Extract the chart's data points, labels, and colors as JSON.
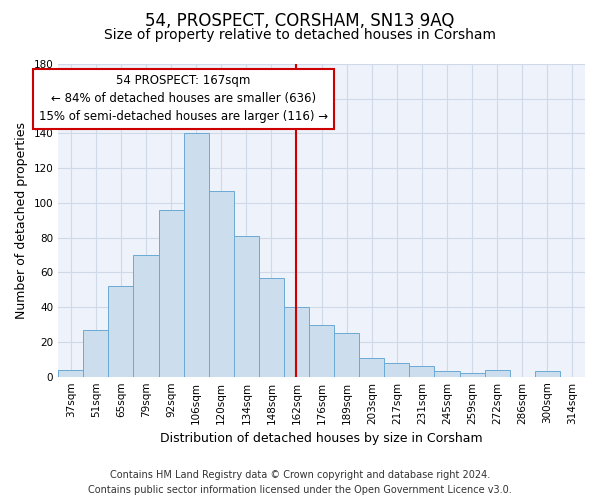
{
  "title": "54, PROSPECT, CORSHAM, SN13 9AQ",
  "subtitle": "Size of property relative to detached houses in Corsham",
  "xlabel": "Distribution of detached houses by size in Corsham",
  "ylabel": "Number of detached properties",
  "bar_labels": [
    "37sqm",
    "51sqm",
    "65sqm",
    "79sqm",
    "92sqm",
    "106sqm",
    "120sqm",
    "134sqm",
    "148sqm",
    "162sqm",
    "176sqm",
    "189sqm",
    "203sqm",
    "217sqm",
    "231sqm",
    "245sqm",
    "259sqm",
    "272sqm",
    "286sqm",
    "300sqm",
    "314sqm"
  ],
  "bar_values": [
    4,
    27,
    52,
    70,
    96,
    140,
    107,
    81,
    57,
    40,
    30,
    25,
    11,
    8,
    6,
    3,
    2,
    4,
    0,
    3,
    0
  ],
  "bar_color": "#ccdded",
  "bar_edge_color": "#6aaad4",
  "grid_color": "#d0d9e8",
  "ylim": [
    0,
    180
  ],
  "yticks": [
    0,
    20,
    40,
    60,
    80,
    100,
    120,
    140,
    160,
    180
  ],
  "vline_x": 9.5,
  "annotation_line1": "54 PROSPECT: 167sqm",
  "annotation_line2": "← 84% of detached houses are smaller (636)",
  "annotation_line3": "15% of semi-detached houses are larger (116) →",
  "annotation_box_color": "#ffffff",
  "annotation_box_edge_color": "#cc0000",
  "vline_color": "#cc0000",
  "footer_line1": "Contains HM Land Registry data © Crown copyright and database right 2024.",
  "footer_line2": "Contains public sector information licensed under the Open Government Licence v3.0.",
  "background_color": "#eef2fa",
  "title_fontsize": 12,
  "subtitle_fontsize": 10,
  "axis_label_fontsize": 9,
  "tick_fontsize": 7.5,
  "annotation_fontsize": 8.5,
  "footer_fontsize": 7
}
